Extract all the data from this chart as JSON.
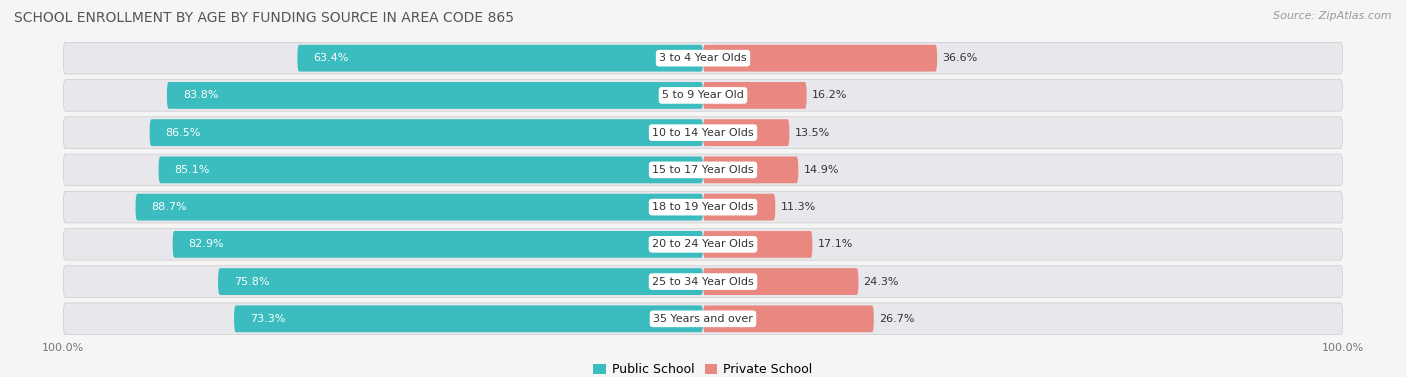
{
  "title": "SCHOOL ENROLLMENT BY AGE BY FUNDING SOURCE IN AREA CODE 865",
  "source": "Source: ZipAtlas.com",
  "categories": [
    "3 to 4 Year Olds",
    "5 to 9 Year Old",
    "10 to 14 Year Olds",
    "15 to 17 Year Olds",
    "18 to 19 Year Olds",
    "20 to 24 Year Olds",
    "25 to 34 Year Olds",
    "35 Years and over"
  ],
  "public_values": [
    63.4,
    83.8,
    86.5,
    85.1,
    88.7,
    82.9,
    75.8,
    73.3
  ],
  "private_values": [
    36.6,
    16.2,
    13.5,
    14.9,
    11.3,
    17.1,
    24.3,
    26.7
  ],
  "public_color": "#3BBCBE",
  "private_color": "#E98880",
  "row_bg_color": "#E8E8EC",
  "fig_bg_color": "#F5F5F5",
  "title_color": "#555555",
  "label_color": "#333333",
  "source_color": "#999999",
  "title_fontsize": 10,
  "bar_label_fontsize": 8,
  "cat_label_fontsize": 8,
  "legend_fontsize": 9,
  "axis_label_fontsize": 8
}
